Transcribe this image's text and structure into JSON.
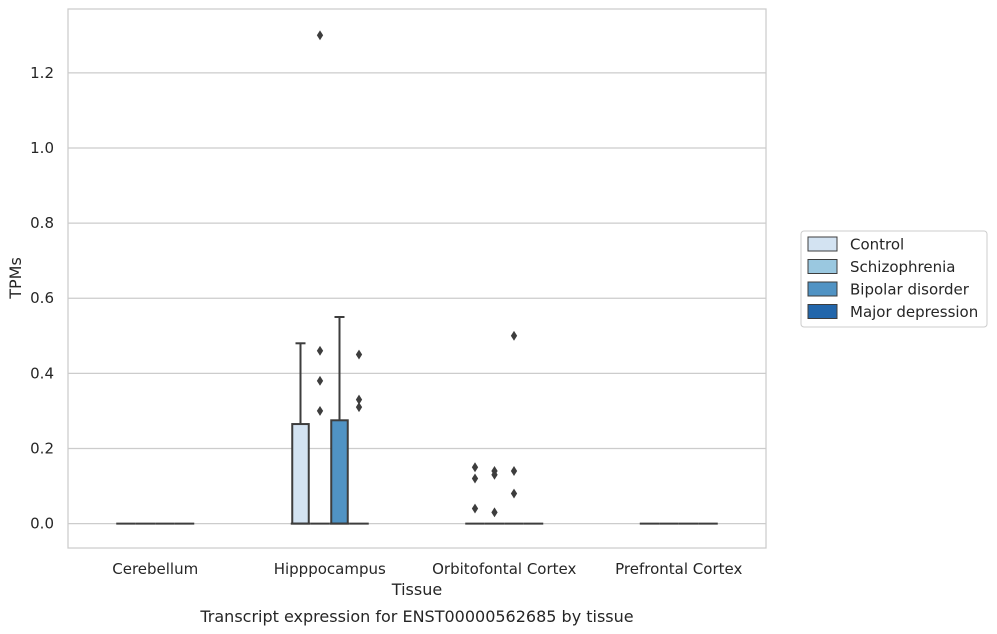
{
  "chart_data": {
    "type": "box",
    "caption": "Transcript expression for ENST00000562685 by tissue",
    "xlabel": "Tissue",
    "ylabel": "TPMs",
    "ylim": [
      -0.065,
      1.37
    ],
    "yticks": [
      "0.0",
      "0.2",
      "0.4",
      "0.6",
      "0.8",
      "1.0",
      "1.2"
    ],
    "categories": [
      "Cerebellum",
      "Hipppocampus",
      "Orbitofontal Cortex",
      "Prefrontal Cortex"
    ],
    "grid": true,
    "legend_position": "right",
    "series": [
      {
        "name": "Control",
        "color": "#d3e3f2"
      },
      {
        "name": "Schizophrenia",
        "color": "#9ac8e0"
      },
      {
        "name": "Bipolar disorder",
        "color": "#5093c4"
      },
      {
        "name": "Major depression",
        "color": "#2266ab"
      }
    ],
    "boxes": [
      {
        "category": "Cerebellum",
        "series": "Control",
        "q1": 0,
        "median": 0,
        "q3": 0,
        "whisker_low": 0,
        "whisker_high": 0,
        "outliers": []
      },
      {
        "category": "Cerebellum",
        "series": "Schizophrenia",
        "q1": 0,
        "median": 0,
        "q3": 0,
        "whisker_low": 0,
        "whisker_high": 0,
        "outliers": []
      },
      {
        "category": "Cerebellum",
        "series": "Bipolar disorder",
        "q1": 0,
        "median": 0,
        "q3": 0,
        "whisker_low": 0,
        "whisker_high": 0,
        "outliers": []
      },
      {
        "category": "Cerebellum",
        "series": "Major depression",
        "q1": 0,
        "median": 0,
        "q3": 0,
        "whisker_low": 0,
        "whisker_high": 0,
        "outliers": []
      },
      {
        "category": "Hipppocampus",
        "series": "Control",
        "q1": 0,
        "median": 0,
        "q3": 0.265,
        "whisker_low": 0,
        "whisker_high": 0.48,
        "outliers": []
      },
      {
        "category": "Hipppocampus",
        "series": "Schizophrenia",
        "q1": 0,
        "median": 0,
        "q3": 0,
        "whisker_low": 0,
        "whisker_high": 0,
        "outliers": [
          0.3,
          0.38,
          0.46,
          1.3
        ]
      },
      {
        "category": "Hipppocampus",
        "series": "Bipolar disorder",
        "q1": 0,
        "median": 0,
        "q3": 0.275,
        "whisker_low": 0,
        "whisker_high": 0.55,
        "outliers": []
      },
      {
        "category": "Hipppocampus",
        "series": "Major depression",
        "q1": 0,
        "median": 0,
        "q3": 0,
        "whisker_low": 0,
        "whisker_high": 0,
        "outliers": [
          0.31,
          0.33,
          0.45
        ]
      },
      {
        "category": "Orbitofontal Cortex",
        "series": "Control",
        "q1": 0,
        "median": 0,
        "q3": 0,
        "whisker_low": 0,
        "whisker_high": 0,
        "outliers": [
          0.04,
          0.12,
          0.15
        ]
      },
      {
        "category": "Orbitofontal Cortex",
        "series": "Schizophrenia",
        "q1": 0,
        "median": 0,
        "q3": 0,
        "whisker_low": 0,
        "whisker_high": 0,
        "outliers": [
          0.03,
          0.13,
          0.14
        ]
      },
      {
        "category": "Orbitofontal Cortex",
        "series": "Bipolar disorder",
        "q1": 0,
        "median": 0,
        "q3": 0,
        "whisker_low": 0,
        "whisker_high": 0,
        "outliers": [
          0.08,
          0.14,
          0.5
        ]
      },
      {
        "category": "Orbitofontal Cortex",
        "series": "Major depression",
        "q1": 0,
        "median": 0,
        "q3": 0,
        "whisker_low": 0,
        "whisker_high": 0,
        "outliers": []
      },
      {
        "category": "Prefrontal Cortex",
        "series": "Control",
        "q1": 0,
        "median": 0,
        "q3": 0,
        "whisker_low": 0,
        "whisker_high": 0,
        "outliers": []
      },
      {
        "category": "Prefrontal Cortex",
        "series": "Schizophrenia",
        "q1": 0,
        "median": 0,
        "q3": 0,
        "whisker_low": 0,
        "whisker_high": 0,
        "outliers": []
      },
      {
        "category": "Prefrontal Cortex",
        "series": "Bipolar disorder",
        "q1": 0,
        "median": 0,
        "q3": 0,
        "whisker_low": 0,
        "whisker_high": 0,
        "outliers": []
      },
      {
        "category": "Prefrontal Cortex",
        "series": "Major depression",
        "q1": 0,
        "median": 0,
        "q3": 0,
        "whisker_low": 0,
        "whisker_high": 0,
        "outliers": []
      }
    ]
  }
}
